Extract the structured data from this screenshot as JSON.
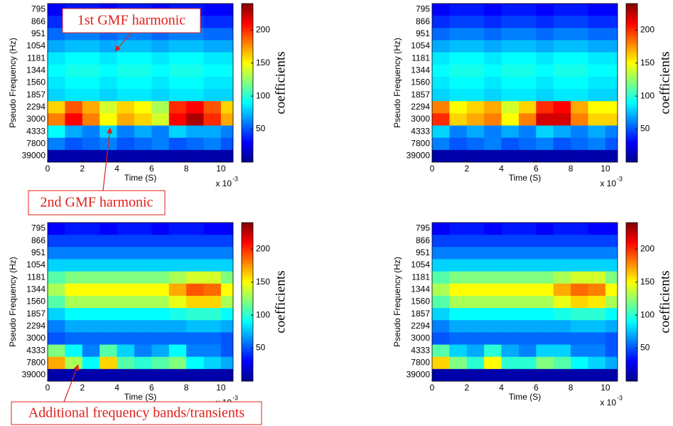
{
  "annotations": [
    "1st GMF harmonic",
    "2nd GMF harmonic",
    "Additional frequency bands/transients"
  ],
  "chart_data": [
    {
      "type": "heatmap",
      "xlabel": "Time (S)",
      "ylabel": "Pseudo Frequency (Hz)",
      "x_exponent_base": "x 10",
      "x_exponent": "-3",
      "colorbar_label": "coefficients",
      "xlim": [
        0,
        10.7
      ],
      "xticks": [
        0,
        2,
        4,
        6,
        8,
        10
      ],
      "zlim": [
        0,
        240
      ],
      "zticks": [
        50,
        100,
        150,
        200
      ],
      "x": [
        0.5,
        1.5,
        2.5,
        3.5,
        4.5,
        5.5,
        6.5,
        7.5,
        8.5,
        9.5,
        10.5
      ],
      "categories": [
        "795",
        "866",
        "951",
        "1054",
        "1181",
        "1344",
        "1560",
        "1857",
        "2294",
        "3000",
        "4333",
        "7800",
        "39000"
      ],
      "z": [
        [
          30,
          35,
          35,
          30,
          35,
          35,
          30,
          35,
          35,
          30,
          30
        ],
        [
          40,
          45,
          45,
          40,
          45,
          45,
          40,
          45,
          45,
          40,
          40
        ],
        [
          55,
          60,
          60,
          55,
          60,
          60,
          55,
          60,
          60,
          55,
          55
        ],
        [
          70,
          75,
          75,
          70,
          75,
          75,
          70,
          75,
          75,
          70,
          70
        ],
        [
          85,
          90,
          90,
          85,
          90,
          90,
          85,
          90,
          90,
          85,
          85
        ],
        [
          90,
          95,
          95,
          90,
          95,
          95,
          90,
          95,
          95,
          90,
          90
        ],
        [
          85,
          90,
          90,
          85,
          90,
          90,
          85,
          90,
          90,
          85,
          85
        ],
        [
          80,
          85,
          85,
          80,
          85,
          85,
          80,
          85,
          85,
          80,
          80
        ],
        [
          160,
          190,
          170,
          140,
          160,
          150,
          130,
          200,
          210,
          190,
          160
        ],
        [
          180,
          210,
          180,
          150,
          170,
          160,
          140,
          210,
          230,
          200,
          170
        ],
        [
          90,
          70,
          60,
          80,
          60,
          70,
          60,
          80,
          70,
          70,
          60
        ],
        [
          60,
          50,
          55,
          60,
          50,
          55,
          60,
          50,
          55,
          60,
          50
        ],
        [
          10,
          10,
          10,
          10,
          10,
          10,
          10,
          10,
          10,
          10,
          10
        ]
      ]
    },
    {
      "type": "heatmap",
      "xlabel": "Time (S)",
      "ylabel": "Pseudo Frequency (Hz)",
      "x_exponent_base": "x 10",
      "x_exponent": "-3",
      "colorbar_label": "coefficients",
      "xlim": [
        0,
        10.7
      ],
      "xticks": [
        0,
        2,
        4,
        6,
        8,
        10
      ],
      "zlim": [
        0,
        240
      ],
      "zticks": [
        50,
        100,
        150,
        200
      ],
      "x": [
        0.5,
        1.5,
        2.5,
        3.5,
        4.5,
        5.5,
        6.5,
        7.5,
        8.5,
        9.5,
        10.5
      ],
      "categories": [
        "795",
        "866",
        "951",
        "1054",
        "1181",
        "1344",
        "1560",
        "1857",
        "2294",
        "3000",
        "4333",
        "7800",
        "39000"
      ],
      "z": [
        [
          30,
          35,
          35,
          30,
          35,
          35,
          30,
          35,
          35,
          30,
          30
        ],
        [
          40,
          45,
          45,
          40,
          45,
          45,
          40,
          45,
          45,
          40,
          40
        ],
        [
          55,
          60,
          60,
          55,
          60,
          60,
          55,
          60,
          60,
          55,
          55
        ],
        [
          70,
          75,
          75,
          70,
          75,
          75,
          70,
          75,
          75,
          70,
          70
        ],
        [
          85,
          90,
          90,
          85,
          90,
          90,
          85,
          90,
          90,
          85,
          85
        ],
        [
          90,
          95,
          95,
          90,
          95,
          95,
          90,
          95,
          95,
          90,
          90
        ],
        [
          85,
          90,
          90,
          85,
          90,
          90,
          85,
          90,
          90,
          85,
          85
        ],
        [
          80,
          85,
          85,
          80,
          85,
          85,
          80,
          85,
          85,
          80,
          80
        ],
        [
          180,
          150,
          160,
          170,
          140,
          160,
          200,
          210,
          170,
          150,
          150
        ],
        [
          200,
          160,
          170,
          180,
          150,
          180,
          220,
          220,
          180,
          160,
          160
        ],
        [
          80,
          60,
          70,
          60,
          70,
          60,
          80,
          70,
          60,
          70,
          60
        ],
        [
          60,
          50,
          55,
          60,
          50,
          55,
          60,
          50,
          55,
          60,
          50
        ],
        [
          10,
          10,
          10,
          10,
          10,
          10,
          10,
          10,
          10,
          10,
          10
        ]
      ]
    },
    {
      "type": "heatmap",
      "xlabel": "Time (S)",
      "ylabel": "Pseudo Frequency (Hz)",
      "x_exponent_base": "x 10",
      "x_exponent": "-3",
      "colorbar_label": "coefficients",
      "xlim": [
        0,
        10.7
      ],
      "xticks": [
        0,
        2,
        4,
        6,
        8,
        10
      ],
      "zlim": [
        0,
        240
      ],
      "zticks": [
        50,
        100,
        150,
        200
      ],
      "x": [
        0.5,
        1.5,
        2.5,
        3.5,
        4.5,
        5.5,
        6.5,
        7.5,
        8.5,
        9.5,
        10.5
      ],
      "categories": [
        "795",
        "866",
        "951",
        "1054",
        "1181",
        "1344",
        "1560",
        "1857",
        "2294",
        "3000",
        "4333",
        "7800",
        "39000"
      ],
      "z": [
        [
          30,
          35,
          35,
          30,
          35,
          35,
          30,
          35,
          35,
          30,
          30
        ],
        [
          45,
          45,
          45,
          45,
          45,
          45,
          45,
          45,
          45,
          45,
          45
        ],
        [
          60,
          60,
          60,
          60,
          60,
          60,
          60,
          60,
          60,
          60,
          60
        ],
        [
          80,
          80,
          80,
          80,
          80,
          80,
          80,
          80,
          80,
          80,
          80
        ],
        [
          110,
          120,
          120,
          120,
          120,
          120,
          120,
          130,
          140,
          140,
          120
        ],
        [
          130,
          150,
          150,
          150,
          150,
          150,
          150,
          170,
          190,
          185,
          150
        ],
        [
          110,
          130,
          130,
          130,
          130,
          130,
          130,
          145,
          160,
          160,
          130
        ],
        [
          80,
          90,
          90,
          90,
          90,
          90,
          90,
          95,
          100,
          100,
          90
        ],
        [
          60,
          70,
          70,
          70,
          70,
          70,
          70,
          70,
          75,
          75,
          70
        ],
        [
          50,
          55,
          55,
          55,
          55,
          55,
          55,
          55,
          55,
          55,
          50
        ],
        [
          120,
          90,
          60,
          110,
          80,
          60,
          70,
          90,
          60,
          60,
          50
        ],
        [
          170,
          130,
          90,
          160,
          110,
          100,
          110,
          120,
          90,
          80,
          70
        ],
        [
          10,
          10,
          10,
          10,
          10,
          10,
          10,
          10,
          10,
          10,
          10
        ]
      ]
    },
    {
      "type": "heatmap",
      "xlabel": "Time (S)",
      "ylabel": "Pseudo Frequency (Hz)",
      "x_exponent_base": "x 10",
      "x_exponent": "-3",
      "colorbar_label": "coefficients",
      "xlim": [
        0,
        10.7
      ],
      "xticks": [
        0,
        2,
        4,
        6,
        8,
        10
      ],
      "zlim": [
        0,
        240
      ],
      "zticks": [
        50,
        100,
        150,
        200
      ],
      "x": [
        0.5,
        1.5,
        2.5,
        3.5,
        4.5,
        5.5,
        6.5,
        7.5,
        8.5,
        9.5,
        10.5
      ],
      "categories": [
        "795",
        "866",
        "951",
        "1054",
        "1181",
        "1344",
        "1560",
        "1857",
        "2294",
        "3000",
        "4333",
        "7800",
        "39000"
      ],
      "z": [
        [
          30,
          35,
          35,
          30,
          35,
          35,
          30,
          35,
          35,
          30,
          30
        ],
        [
          45,
          45,
          45,
          45,
          45,
          45,
          45,
          45,
          45,
          45,
          45
        ],
        [
          60,
          60,
          60,
          60,
          60,
          60,
          60,
          60,
          60,
          60,
          60
        ],
        [
          80,
          80,
          80,
          80,
          80,
          80,
          80,
          80,
          80,
          80,
          80
        ],
        [
          110,
          120,
          120,
          120,
          120,
          120,
          120,
          130,
          140,
          140,
          120
        ],
        [
          130,
          150,
          150,
          150,
          150,
          150,
          150,
          170,
          185,
          180,
          150
        ],
        [
          110,
          130,
          130,
          130,
          130,
          130,
          130,
          145,
          160,
          155,
          130
        ],
        [
          80,
          90,
          90,
          90,
          90,
          90,
          90,
          95,
          100,
          100,
          90
        ],
        [
          60,
          70,
          70,
          70,
          70,
          70,
          70,
          70,
          75,
          75,
          70
        ],
        [
          50,
          55,
          55,
          55,
          55,
          55,
          55,
          55,
          55,
          55,
          50
        ],
        [
          110,
          80,
          70,
          100,
          70,
          60,
          80,
          80,
          60,
          60,
          50
        ],
        [
          160,
          120,
          100,
          150,
          100,
          100,
          120,
          110,
          90,
          80,
          70
        ],
        [
          10,
          10,
          10,
          10,
          10,
          10,
          10,
          10,
          10,
          10,
          10
        ]
      ]
    }
  ]
}
